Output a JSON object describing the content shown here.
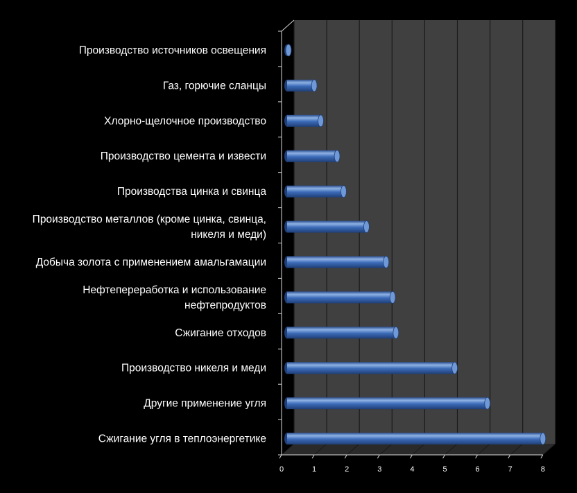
{
  "chart_data": {
    "type": "bar",
    "orientation": "horizontal",
    "categories": [
      "Сжигание угля в теплоэнергетике",
      "Другие применение угля",
      "Производство никеля и меди",
      "Сжигание отходов",
      "Нефтепереработка и использование нефтепродуктов",
      "Добыча золота с применением амальгамации",
      "Производство металлов (кроме цинка, свинца, никеля и меди)",
      "Производства цинка и свинца",
      "Производство цемента и извести",
      "Хлорно-щелочное производство",
      "Газ, горючие сланцы",
      "Производство источников освещения"
    ],
    "category_lines": [
      [
        "Сжигание угля в теплоэнергетике"
      ],
      [
        "Другие применение угля"
      ],
      [
        "Производство никеля и меди"
      ],
      [
        "Сжигание отходов"
      ],
      [
        "Нефтепереработка и использование",
        "нефтепродуктов"
      ],
      [
        "Добыча золота с применением амальгамации"
      ],
      [
        "Производство металлов (кроме цинка, свинца,",
        "никеля и меди)"
      ],
      [
        "Производства цинка и свинца"
      ],
      [
        "Производство цемента и извести"
      ],
      [
        "Хлорно-щелочное производство"
      ],
      [
        "Газ, горючие сланцы"
      ],
      [
        "Производство источников освещения"
      ]
    ],
    "values": [
      8.0,
      6.3,
      5.3,
      3.5,
      3.4,
      3.2,
      2.6,
      1.9,
      1.7,
      1.2,
      1.0,
      0.2
    ],
    "xlim": [
      0,
      8
    ],
    "xticks": [
      0,
      1,
      2,
      3,
      4,
      5,
      6,
      7,
      8
    ],
    "title": "",
    "xlabel": "",
    "ylabel": "",
    "grid": true,
    "legend": "none",
    "style": "3d-cylinder",
    "colors": {
      "background": "#000000",
      "plot_wall": "#404040",
      "gridline": "#1a1a1a",
      "bar_main": "#3c6bb8",
      "bar_light": "#8fb2e4",
      "bar_dark": "#1f3f78",
      "bar_cap": "#6f98d6",
      "axis": "#d8d8d8",
      "label_text": "#ffffff",
      "tick_text": "#ffffff"
    }
  }
}
